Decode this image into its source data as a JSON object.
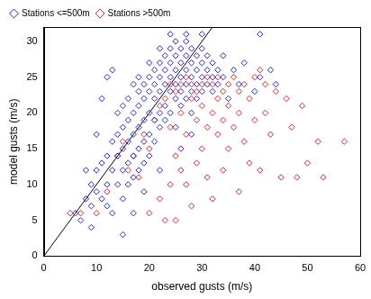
{
  "chart_data": {
    "type": "scatter",
    "xlabel": "observed gusts (m/s)",
    "ylabel": "model gusts (m/s)",
    "xlim": [
      0,
      60
    ],
    "xticks": [
      0,
      10,
      20,
      30,
      40,
      50,
      60
    ],
    "ylim": [
      0,
      32
    ],
    "yticks": [
      0,
      5,
      10,
      15,
      20,
      25,
      30
    ],
    "grid": false,
    "legend": "upper left",
    "series": [
      {
        "name": "Stations <=500m",
        "color": "#2222e6",
        "marker": "diamond",
        "x": [
          6,
          7,
          8,
          9,
          9,
          10,
          10,
          11,
          11,
          12,
          12,
          12,
          13,
          13,
          13,
          14,
          14,
          14,
          14,
          15,
          15,
          15,
          15,
          15,
          16,
          16,
          16,
          16,
          16,
          17,
          17,
          17,
          17,
          17,
          18,
          18,
          18,
          18,
          18,
          18,
          19,
          19,
          19,
          19,
          19,
          20,
          20,
          20,
          20,
          20,
          20,
          21,
          21,
          21,
          21,
          21,
          22,
          22,
          22,
          22,
          22,
          22,
          23,
          23,
          23,
          23,
          23,
          24,
          24,
          24,
          24,
          24,
          25,
          25,
          25,
          25,
          25,
          25,
          26,
          26,
          26,
          26,
          26,
          27,
          27,
          27,
          27,
          27,
          28,
          28,
          28,
          28,
          28,
          29,
          29,
          29,
          29,
          30,
          30,
          30,
          30,
          31,
          31,
          31,
          32,
          32,
          32,
          33,
          33,
          34,
          34,
          35,
          36,
          37,
          38,
          40,
          41,
          43,
          44,
          11,
          12,
          13,
          10,
          8,
          24,
          27,
          30,
          41,
          19,
          22,
          26,
          9,
          17,
          15,
          28
        ],
        "values": [
          6,
          5,
          8,
          10,
          7,
          12,
          9,
          13,
          8,
          14,
          10,
          7,
          16,
          12,
          6,
          17,
          14,
          10,
          20,
          18,
          15,
          12,
          21,
          8,
          19,
          16,
          13,
          22,
          10,
          20,
          17,
          14,
          24,
          11,
          21,
          18,
          15,
          23,
          12,
          25,
          22,
          19,
          16,
          24,
          13,
          23,
          20,
          17,
          25,
          14,
          27,
          22,
          24,
          19,
          26,
          16,
          23,
          25,
          20,
          27,
          18,
          29,
          24,
          26,
          21,
          28,
          19,
          25,
          23,
          27,
          20,
          29,
          26,
          24,
          22,
          28,
          30,
          18,
          25,
          27,
          23,
          29,
          21,
          26,
          24,
          28,
          22,
          30,
          25,
          27,
          23,
          29,
          20,
          26,
          24,
          28,
          22,
          25,
          27,
          23,
          29,
          26,
          24,
          28,
          25,
          27,
          23,
          26,
          24,
          25,
          28,
          22,
          26,
          24,
          27,
          23,
          25,
          26,
          24,
          22,
          25,
          26,
          17,
          12,
          31,
          31,
          31,
          31,
          9,
          12,
          15,
          4,
          6,
          3,
          17
        ]
      },
      {
        "name": "Stations >500m",
        "color": "#e62222",
        "marker": "diamond",
        "x": [
          5,
          7,
          10,
          12,
          14,
          15,
          16,
          17,
          18,
          19,
          20,
          20,
          21,
          22,
          22,
          23,
          23,
          24,
          24,
          24,
          25,
          25,
          25,
          26,
          26,
          26,
          27,
          27,
          27,
          28,
          28,
          28,
          29,
          29,
          29,
          30,
          30,
          30,
          31,
          31,
          31,
          32,
          32,
          32,
          33,
          33,
          33,
          34,
          34,
          34,
          35,
          35,
          35,
          36,
          36,
          37,
          37,
          37,
          38,
          38,
          39,
          39,
          40,
          40,
          41,
          41,
          42,
          42,
          43,
          44,
          45,
          46,
          47,
          48,
          49,
          50,
          52,
          53,
          57
        ],
        "values": [
          6,
          6,
          6,
          9,
          14,
          16,
          12,
          14,
          11,
          17,
          15,
          6,
          19,
          21,
          8,
          5,
          22,
          24,
          18,
          10,
          23,
          14,
          5,
          24,
          20,
          12,
          25,
          17,
          10,
          24,
          22,
          7,
          23,
          19,
          13,
          24,
          21,
          15,
          25,
          18,
          11,
          24,
          20,
          8,
          25,
          22,
          17,
          23,
          19,
          12,
          24,
          21,
          15,
          25,
          18,
          23,
          20,
          9,
          24,
          16,
          22,
          13,
          25,
          19,
          26,
          12,
          24,
          20,
          17,
          23,
          11,
          22,
          18,
          11,
          21,
          13,
          16,
          11,
          16
        ]
      },
      {
        "type": "line",
        "color": "#000000",
        "line_style": "solid",
        "marker": "none",
        "x": [
          0,
          32
        ],
        "values": [
          0,
          32
        ]
      }
    ]
  }
}
